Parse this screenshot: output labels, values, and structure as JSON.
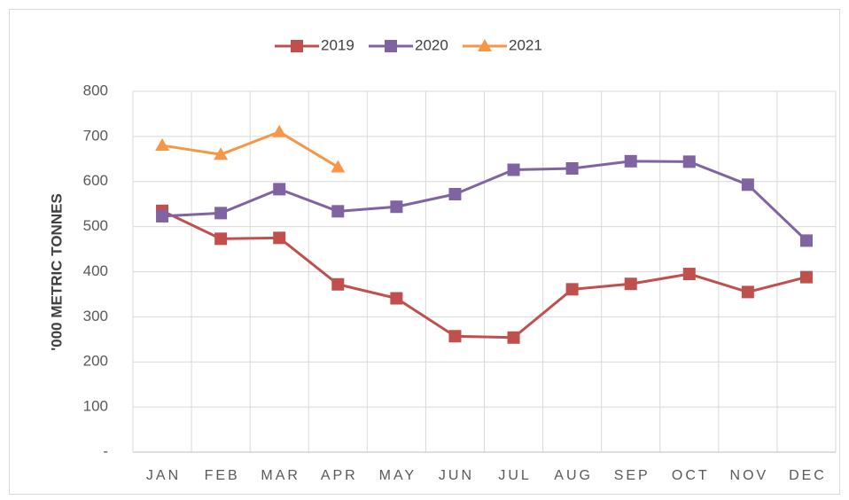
{
  "chart_data": {
    "type": "line",
    "y_label": "'000 METRIC TONNES",
    "categories": [
      "JAN",
      "FEB",
      "MAR",
      "APR",
      "MAY",
      "JUN",
      "JUL",
      "AUG",
      "SEP",
      "OCT",
      "NOV",
      "DEC"
    ],
    "series": [
      {
        "name": "2019",
        "color": "#c0504d",
        "marker": "square",
        "values": [
          535,
          473,
          475,
          372,
          341,
          257,
          254,
          361,
          373,
          395,
          355,
          388
        ]
      },
      {
        "name": "2020",
        "color": "#8064a2",
        "marker": "square",
        "values": [
          523,
          530,
          583,
          534,
          544,
          572,
          626,
          629,
          645,
          644,
          593,
          469
        ]
      },
      {
        "name": "2021",
        "color": "#f79646",
        "marker": "triangle",
        "values": [
          680,
          660,
          710,
          632,
          null,
          null,
          null,
          null,
          null,
          null,
          null,
          null
        ]
      }
    ],
    "ylim": [
      0,
      800
    ],
    "yticks": [
      {
        "value": 0,
        "label": "-"
      },
      100,
      200,
      300,
      400,
      500,
      600,
      700,
      800
    ],
    "grid": true,
    "legend": "top"
  }
}
